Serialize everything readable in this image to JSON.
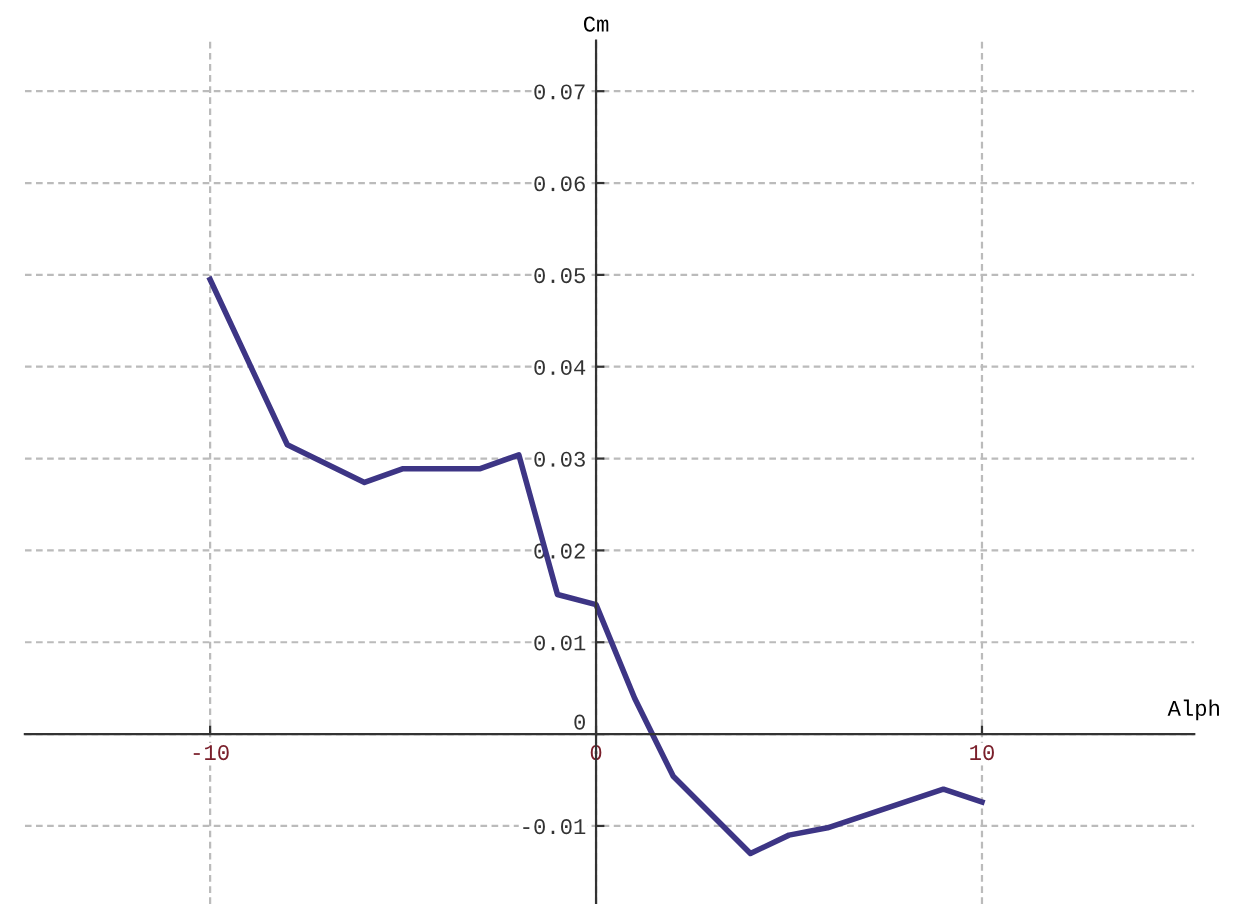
{
  "chart_data": {
    "type": "line",
    "xlabel": "Alph",
    "ylabel": "Cm",
    "x": [
      -10,
      -8,
      -6,
      -5,
      -3,
      -2,
      -1,
      0,
      1,
      2,
      4,
      5,
      6,
      9,
      10
    ],
    "series": [
      {
        "color": "#3d3585",
        "values": [
          0.0495,
          0.0315,
          0.0274,
          0.0289,
          0.0289,
          0.0304,
          0.0152,
          0.0141,
          0.0039,
          -0.0046,
          -0.013,
          -0.011,
          -0.0102,
          -0.006,
          -0.0074
        ]
      }
    ],
    "xlim": [
      -14.8,
      15.5
    ],
    "ylim": [
      -0.0185,
      0.0755
    ],
    "xticks": [
      -10,
      0,
      10
    ],
    "yticks": [
      -0.01,
      0,
      0.01,
      0.02,
      0.03,
      0.04,
      0.05,
      0.06,
      0.07
    ],
    "grid": true,
    "marker": "none",
    "line_style": "solid"
  }
}
